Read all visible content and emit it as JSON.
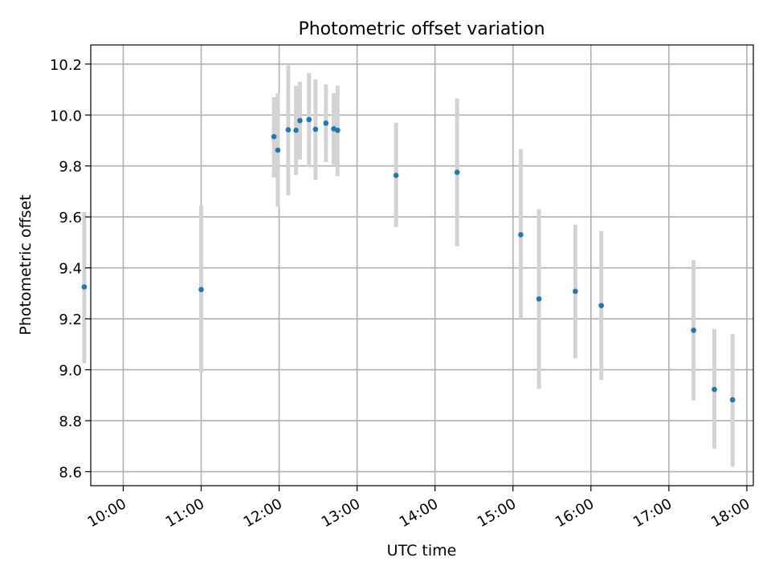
{
  "chart_data": {
    "type": "scatter",
    "title": "Photometric offset variation",
    "xlabel": "UTC time",
    "ylabel": "Photometric offset",
    "xlim": [
      "09:35",
      "18:05"
    ],
    "ylim": [
      8.545,
      10.275
    ],
    "grid": true,
    "x_ticks": [
      "10:00",
      "11:00",
      "12:00",
      "13:00",
      "14:00",
      "15:00",
      "16:00",
      "17:00",
      "18:00"
    ],
    "y_ticks": [
      "8.6",
      "8.8",
      "9.0",
      "9.2",
      "9.4",
      "9.6",
      "9.8",
      "10.0",
      "10.2"
    ],
    "y_tick_values": [
      8.6,
      8.8,
      9.0,
      9.2,
      9.4,
      9.6,
      9.8,
      10.0,
      10.2
    ],
    "colors": {
      "point": "#1f77b4",
      "errorbar": "#d3d3d3",
      "grid": "#b0b0b0"
    },
    "points": [
      {
        "x": "09:30",
        "y": 9.325,
        "low": 9.025,
        "high": 9.62
      },
      {
        "x": "11:00",
        "y": 9.315,
        "low": 8.99,
        "high": 9.645
      },
      {
        "x": "11:56",
        "y": 9.915,
        "low": 9.755,
        "high": 10.07
      },
      {
        "x": "11:59",
        "y": 9.862,
        "low": 9.64,
        "high": 10.085
      },
      {
        "x": "12:07",
        "y": 9.942,
        "low": 9.685,
        "high": 10.195
      },
      {
        "x": "12:13",
        "y": 9.94,
        "low": 9.765,
        "high": 10.115
      },
      {
        "x": "12:16",
        "y": 9.978,
        "low": 9.825,
        "high": 10.13
      },
      {
        "x": "12:23",
        "y": 9.982,
        "low": 9.795,
        "high": 10.165
      },
      {
        "x": "12:28",
        "y": 9.944,
        "low": 9.745,
        "high": 10.14
      },
      {
        "x": "12:36",
        "y": 9.968,
        "low": 9.815,
        "high": 10.12
      },
      {
        "x": "12:42",
        "y": 9.946,
        "low": 9.805,
        "high": 10.085
      },
      {
        "x": "12:45",
        "y": 9.94,
        "low": 9.76,
        "high": 10.115
      },
      {
        "x": "13:30",
        "y": 9.763,
        "low": 9.56,
        "high": 9.97
      },
      {
        "x": "14:17",
        "y": 9.775,
        "low": 9.485,
        "high": 10.065
      },
      {
        "x": "15:06",
        "y": 9.53,
        "low": 9.2,
        "high": 9.865
      },
      {
        "x": "15:20",
        "y": 9.278,
        "low": 8.925,
        "high": 9.63
      },
      {
        "x": "15:48",
        "y": 9.308,
        "low": 9.045,
        "high": 9.57
      },
      {
        "x": "16:08",
        "y": 9.252,
        "low": 8.96,
        "high": 9.545
      },
      {
        "x": "17:19",
        "y": 9.155,
        "low": 8.88,
        "high": 9.43
      },
      {
        "x": "17:35",
        "y": 8.923,
        "low": 8.69,
        "high": 9.16
      },
      {
        "x": "17:49",
        "y": 8.882,
        "low": 8.62,
        "high": 9.14
      }
    ]
  }
}
